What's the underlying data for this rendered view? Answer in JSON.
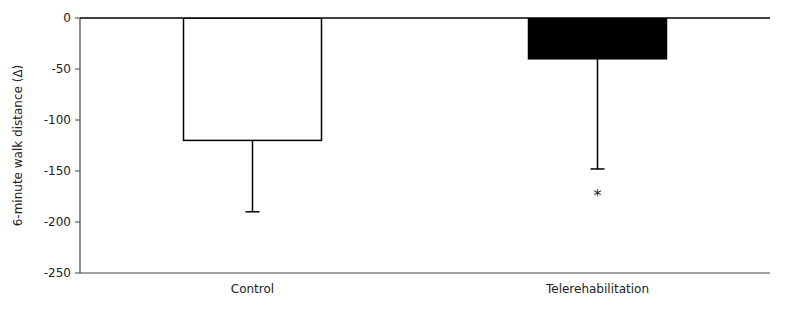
{
  "chart_data": {
    "type": "bar",
    "categories": [
      "Control",
      "Telerehabilitation"
    ],
    "values": [
      -120,
      -40
    ],
    "errors_down": [
      70,
      108
    ],
    "colors": [
      "#ffffff",
      "#000000"
    ],
    "ylim": [
      -250,
      0
    ],
    "yticks": [
      0,
      -50,
      -100,
      -150,
      -200,
      -250
    ],
    "ylabel": "6-minute walk distance (Δ)",
    "annotations": [
      {
        "text": "*",
        "x": "Telerehabilitation",
        "y": -168
      }
    ]
  }
}
